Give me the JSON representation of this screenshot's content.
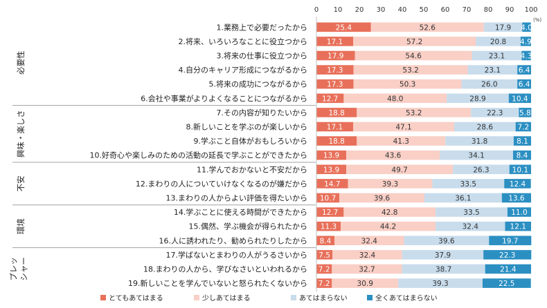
{
  "chart_data": {
    "type": "bar",
    "orientation": "horizontal",
    "stacked": true,
    "xlim": [
      0,
      100
    ],
    "xticks": [
      "0",
      "10",
      "20",
      "30",
      "40",
      "50",
      "60",
      "70",
      "80",
      "90",
      "100"
    ],
    "unit_label": "(%)",
    "categories": [
      "1.業務上で必要だったから",
      "2.将来、いろいろなことに役立つから",
      "3.将来の仕事に役立つから",
      "4.自分のキャリア形成につながるから",
      "5.将来の成功につながるから",
      "6.会社や事業がよりよくなることにつながるから",
      "7.その内容が知りたいから",
      "8.新しいことを学ぶのが楽しいから",
      "9.学ぶこと自体がおもしろいから",
      "10.好奇心や楽しみのための活動の延長で学ぶことができたから",
      "11.学んでおかないと不安だから",
      "12.まわりの人についていけなくなるのが嫌だから",
      "13.まわりの人からよい評価を得たいから",
      "14.学ぶことに使える時間ができたから",
      "15.偶然、学ぶ機会が得られたから",
      "16.人に誘われたり、勧められたりしたから",
      "17.学ばないとまわりの人がうるさいから",
      "18.まわりの人から、学びなさいといわれるから",
      "19.新しいことを学んでいないと怒られたくないから"
    ],
    "groups": [
      {
        "label": "必要性",
        "rows": 6
      },
      {
        "label": "興味・楽しさ",
        "rows": 4
      },
      {
        "label": "不安",
        "rows": 3
      },
      {
        "label": "環境",
        "rows": 3
      },
      {
        "label": "プレッシャー",
        "rows": 3
      }
    ],
    "series": [
      {
        "name": "とてもあてはまる",
        "color": "#e8705a",
        "label_color": "#ffffff",
        "values": [
          25.4,
          17.1,
          17.9,
          17.3,
          17.3,
          12.7,
          18.8,
          17.1,
          18.8,
          13.9,
          13.9,
          14.7,
          10.7,
          12.7,
          11.3,
          8.4,
          7.5,
          7.2,
          7.2
        ]
      },
      {
        "name": "少しあてはまる",
        "color": "#f9cfc6",
        "label_color": "#333333",
        "values": [
          52.6,
          57.2,
          54.6,
          53.2,
          50.3,
          48.0,
          53.2,
          47.1,
          41.3,
          43.6,
          49.7,
          39.3,
          39.6,
          42.8,
          44.2,
          32.4,
          32.4,
          32.7,
          30.9
        ]
      },
      {
        "name": "あてはまらない",
        "color": "#c8dcec",
        "label_color": "#333333",
        "values": [
          17.9,
          20.8,
          23.1,
          23.1,
          26.0,
          28.9,
          22.3,
          28.6,
          31.8,
          34.1,
          26.3,
          33.5,
          36.1,
          33.5,
          32.4,
          39.6,
          37.9,
          38.7,
          39.3
        ]
      },
      {
        "name": "全くあてはまらない",
        "color": "#2b8fc2",
        "label_color": "#ffffff",
        "values": [
          4.0,
          4.9,
          4.3,
          6.4,
          6.4,
          10.4,
          5.8,
          7.2,
          8.1,
          8.4,
          10.1,
          12.4,
          13.6,
          11.0,
          12.1,
          19.7,
          22.3,
          21.4,
          22.5
        ]
      }
    ]
  }
}
